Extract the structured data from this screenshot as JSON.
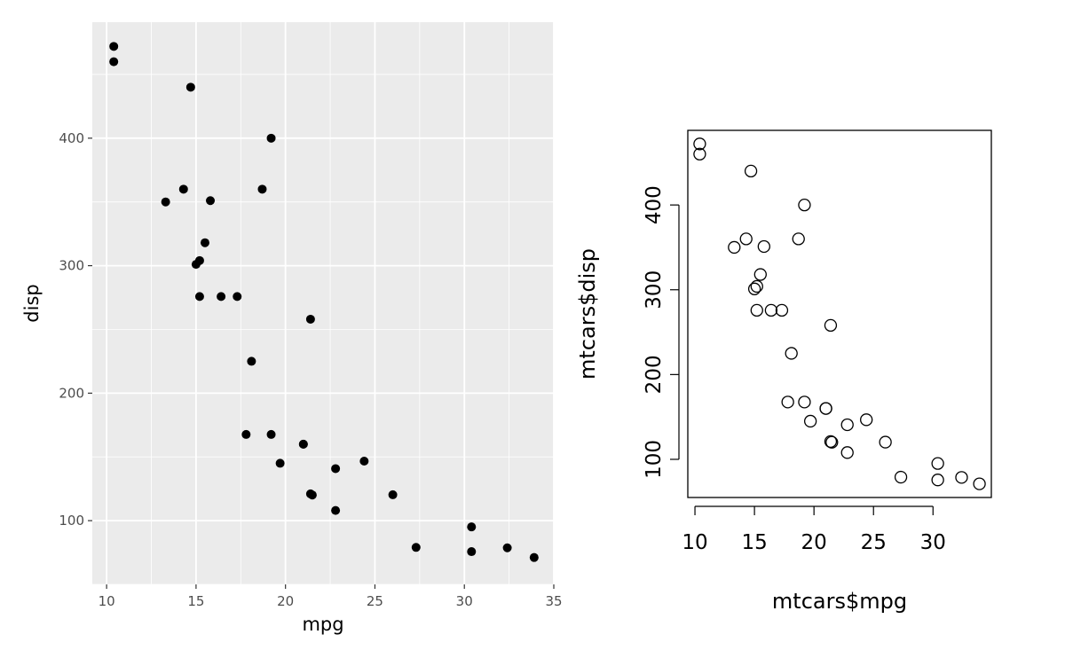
{
  "chart_data": [
    {
      "type": "scatter",
      "style": "ggplot2",
      "title": "",
      "xlabel": "mpg",
      "ylabel": "disp",
      "xlim": [
        9.2,
        35
      ],
      "ylim": [
        50,
        491
      ],
      "xticks": [
        10,
        15,
        20,
        25,
        30,
        35
      ],
      "yticks": [
        100,
        200,
        300,
        400
      ],
      "grid": true,
      "legend": "none",
      "background_color": "#ebebeb",
      "point_color": "#000000",
      "x": [
        21.0,
        21.0,
        22.8,
        21.4,
        18.7,
        18.1,
        14.3,
        24.4,
        22.8,
        19.2,
        17.8,
        16.4,
        17.3,
        15.2,
        10.4,
        10.4,
        14.7,
        32.4,
        30.4,
        33.9,
        21.5,
        15.5,
        15.2,
        13.3,
        19.2,
        27.3,
        26.0,
        30.4,
        15.8,
        19.7,
        15.0,
        21.4
      ],
      "y": [
        160,
        160,
        108,
        258,
        360,
        225,
        360,
        146.7,
        140.8,
        167.6,
        167.6,
        275.8,
        275.8,
        275.8,
        472,
        460,
        440,
        78.7,
        75.7,
        71.1,
        120.1,
        318,
        304,
        350,
        400,
        79,
        120.3,
        95.1,
        351,
        145,
        301,
        121
      ]
    },
    {
      "type": "scatter",
      "style": "base",
      "title": "",
      "xlabel": "mtcars$mpg",
      "ylabel": "mtcars$disp",
      "xlim": [
        9.4,
        34.9
      ],
      "ylim": [
        55,
        488
      ],
      "xticks": [
        10,
        15,
        20,
        25,
        30
      ],
      "yticks": [
        100,
        200,
        300,
        400
      ],
      "grid": false,
      "legend": "none",
      "point_style": "open-circle",
      "x": [
        21.0,
        21.0,
        22.8,
        21.4,
        18.7,
        18.1,
        14.3,
        24.4,
        22.8,
        19.2,
        17.8,
        16.4,
        17.3,
        15.2,
        10.4,
        10.4,
        14.7,
        32.4,
        30.4,
        33.9,
        21.5,
        15.5,
        15.2,
        13.3,
        19.2,
        27.3,
        26.0,
        30.4,
        15.8,
        19.7,
        15.0,
        21.4
      ],
      "y": [
        160,
        160,
        108,
        258,
        360,
        225,
        360,
        146.7,
        140.8,
        167.6,
        167.6,
        275.8,
        275.8,
        275.8,
        472,
        460,
        440,
        78.7,
        75.7,
        71.1,
        120.1,
        318,
        304,
        350,
        400,
        79,
        120.3,
        95.1,
        351,
        145,
        301,
        121
      ]
    }
  ]
}
